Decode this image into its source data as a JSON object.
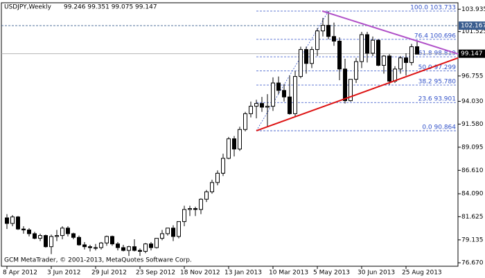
{
  "chart_data": {
    "type": "candlestick",
    "title": "USDJPY,Weekly",
    "quote": "99.246 99.351 99.075 99.147",
    "footer": "GCM MetaTrader, © 2001-2013, MetaQuotes Software Corp.",
    "categories": [
      "8 Apr 2012",
      null,
      null,
      null,
      null,
      null,
      null,
      null,
      "3 Jun 2012",
      null,
      null,
      null,
      null,
      null,
      null,
      null,
      "29 Jul 2012",
      null,
      null,
      null,
      null,
      null,
      null,
      null,
      "23 Sep 2012",
      null,
      null,
      null,
      null,
      null,
      null,
      null,
      "18 Nov 2012",
      null,
      null,
      null,
      null,
      null,
      null,
      null,
      "13 Jan 2013",
      null,
      null,
      null,
      null,
      null,
      null,
      null,
      "10 Mar 2013",
      null,
      null,
      null,
      null,
      null,
      null,
      null,
      "5 May 2013",
      null,
      null,
      null,
      null,
      null,
      null,
      null,
      "30 Jun 2013",
      null,
      null,
      null,
      null,
      null,
      null,
      null,
      "25 Aug 2013",
      null,
      null
    ],
    "values": [
      [
        81.5,
        81.9,
        80.3,
        80.9
      ],
      [
        80.9,
        81.8,
        80.6,
        81.6
      ],
      [
        81.6,
        81.7,
        80.2,
        80.3
      ],
      [
        80.3,
        80.6,
        79.8,
        80.2
      ],
      [
        80.2,
        80.4,
        79.5,
        79.8
      ],
      [
        79.8,
        80.0,
        79.2,
        79.3
      ],
      [
        79.3,
        79.8,
        79.0,
        79.6
      ],
      [
        79.6,
        79.7,
        78.3,
        78.4
      ],
      [
        78.4,
        79.7,
        77.6,
        79.5
      ],
      [
        79.5,
        80.2,
        79.0,
        79.6
      ],
      [
        79.6,
        80.6,
        79.2,
        80.4
      ],
      [
        80.4,
        80.6,
        79.5,
        79.8
      ],
      [
        79.8,
        79.9,
        79.2,
        79.4
      ],
      [
        79.4,
        79.6,
        78.5,
        78.6
      ],
      [
        78.6,
        78.9,
        78.1,
        78.4
      ],
      [
        78.4,
        78.6,
        77.9,
        78.3
      ],
      [
        78.3,
        78.7,
        78.0,
        78.3
      ],
      [
        78.3,
        78.9,
        78.1,
        78.8
      ],
      [
        78.8,
        79.6,
        78.5,
        79.5
      ],
      [
        79.5,
        79.6,
        78.5,
        78.7
      ],
      [
        78.7,
        78.9,
        78.0,
        78.3
      ],
      [
        78.3,
        78.6,
        77.9,
        78.0
      ],
      [
        78.0,
        78.5,
        77.4,
        78.4
      ],
      [
        78.4,
        79.2,
        77.9,
        78.0
      ],
      [
        78.0,
        78.2,
        77.4,
        77.9
      ],
      [
        77.9,
        78.8,
        77.7,
        78.7
      ],
      [
        78.7,
        78.9,
        78.0,
        78.3
      ],
      [
        78.3,
        79.3,
        78.2,
        79.3
      ],
      [
        79.3,
        80.2,
        79.1,
        79.8
      ],
      [
        79.8,
        80.4,
        79.6,
        80.4
      ],
      [
        80.4,
        80.7,
        79.0,
        79.5
      ],
      [
        79.5,
        81.1,
        79.3,
        81.1
      ],
      [
        81.1,
        82.8,
        80.6,
        82.4
      ],
      [
        82.4,
        82.8,
        81.7,
        82.5
      ],
      [
        82.5,
        82.7,
        81.7,
        82.4
      ],
      [
        82.4,
        83.6,
        81.9,
        83.5
      ],
      [
        83.5,
        84.5,
        83.2,
        84.3
      ],
      [
        84.3,
        85.6,
        84.1,
        85.3
      ],
      [
        85.3,
        86.6,
        85.0,
        86.3
      ],
      [
        86.3,
        88.4,
        86.0,
        87.9
      ],
      [
        87.9,
        90.2,
        87.8,
        90.0
      ],
      [
        90.0,
        90.3,
        88.1,
        88.9
      ],
      [
        88.9,
        91.3,
        88.7,
        91.0
      ],
      [
        91.0,
        92.9,
        90.8,
        92.7
      ],
      [
        92.7,
        94.0,
        92.3,
        93.5
      ],
      [
        93.5,
        94.2,
        92.2,
        93.8
      ],
      [
        93.8,
        94.5,
        92.9,
        93.4
      ],
      [
        93.4,
        94.8,
        91.3,
        93.5
      ],
      [
        93.5,
        96.6,
        93.0,
        96.0
      ],
      [
        96.0,
        96.7,
        94.8,
        95.2
      ],
      [
        95.2,
        95.9,
        94.0,
        94.5
      ],
      [
        94.5,
        96.8,
        92.6,
        92.7
      ],
      [
        92.7,
        97.3,
        92.4,
        96.7
      ],
      [
        96.7,
        99.9,
        96.5,
        99.6
      ],
      [
        99.6,
        99.9,
        97.0,
        98.1
      ],
      [
        98.1,
        99.9,
        97.6,
        99.6
      ],
      [
        99.6,
        101.9,
        98.9,
        101.6
      ],
      [
        101.6,
        103.0,
        101.0,
        102.2
      ],
      [
        102.2,
        103.7,
        100.7,
        101.0
      ],
      [
        101.0,
        102.5,
        100.0,
        100.5
      ],
      [
        100.5,
        100.9,
        96.3,
        97.5
      ],
      [
        97.5,
        98.6,
        93.8,
        94.1
      ],
      [
        94.1,
        96.4,
        94.0,
        96.4
      ],
      [
        96.4,
        98.7,
        96.0,
        98.3
      ],
      [
        98.3,
        101.5,
        97.6,
        101.2
      ],
      [
        101.2,
        101.5,
        98.2,
        99.2
      ],
      [
        99.2,
        101.0,
        98.9,
        100.6
      ],
      [
        100.6,
        100.7,
        97.8,
        97.9
      ],
      [
        97.9,
        99.0,
        97.0,
        98.9
      ],
      [
        98.9,
        99.1,
        95.8,
        96.2
      ],
      [
        96.2,
        97.8,
        96.0,
        97.5
      ],
      [
        97.5,
        98.9,
        97.0,
        98.7
      ],
      [
        98.7,
        99.2,
        96.8,
        98.2
      ],
      [
        98.2,
        100.2,
        97.9,
        99.9
      ],
      [
        99.9,
        100.6,
        99.1,
        99.1
      ]
    ],
    "ylim": [
      76.298,
      104.625
    ],
    "yticks": [
      {
        "value": 103.935,
        "label": "103.935"
      },
      {
        "value": 101.525,
        "label": "101.525"
      },
      {
        "value": 96.755,
        "label": "96.755"
      },
      {
        "value": 94.03,
        "label": "94.030"
      },
      {
        "value": 91.58,
        "label": "91.580"
      },
      {
        "value": 89.095,
        "label": "89.095"
      },
      {
        "value": 86.61,
        "label": "86.610"
      },
      {
        "value": 84.09,
        "label": "84.090"
      },
      {
        "value": 81.625,
        "label": "81.625"
      },
      {
        "value": 79.135,
        "label": "79.135"
      },
      {
        "value": 76.67,
        "label": "76.670"
      }
    ],
    "price_lines": [
      {
        "value": 102.167,
        "label": "102.167",
        "color": "#3a5d8f",
        "dashed": true
      },
      {
        "value": 99.147,
        "label": "99.147",
        "color": "#000000",
        "dashed": false
      }
    ],
    "fibonacci": {
      "color": "#3050c8",
      "anchor": [
        [
          45,
          90.864
        ],
        [
          58,
          103.733
        ]
      ],
      "levels": [
        {
          "value": 103.733,
          "label": "100.0 103.733"
        },
        {
          "value": 100.696,
          "label": "76.4 100.696"
        },
        {
          "value": 98.819,
          "label": "61.8 98.819"
        },
        {
          "value": 97.299,
          "label": "50.0 97.299"
        },
        {
          "value": 95.78,
          "label": "38.2 95.780"
        },
        {
          "value": 93.901,
          "label": "23.6 93.901"
        },
        {
          "value": 90.864,
          "label": "0.0 90.864"
        }
      ]
    },
    "trendlines": [
      {
        "color": "#dd1111",
        "from": [
          45,
          90.864
        ],
        "to": [
          81.4,
          98.7
        ]
      },
      {
        "color": "#b050c8",
        "from": [
          56.9,
          103.733
        ],
        "to": [
          81.4,
          99.12
        ]
      }
    ]
  }
}
